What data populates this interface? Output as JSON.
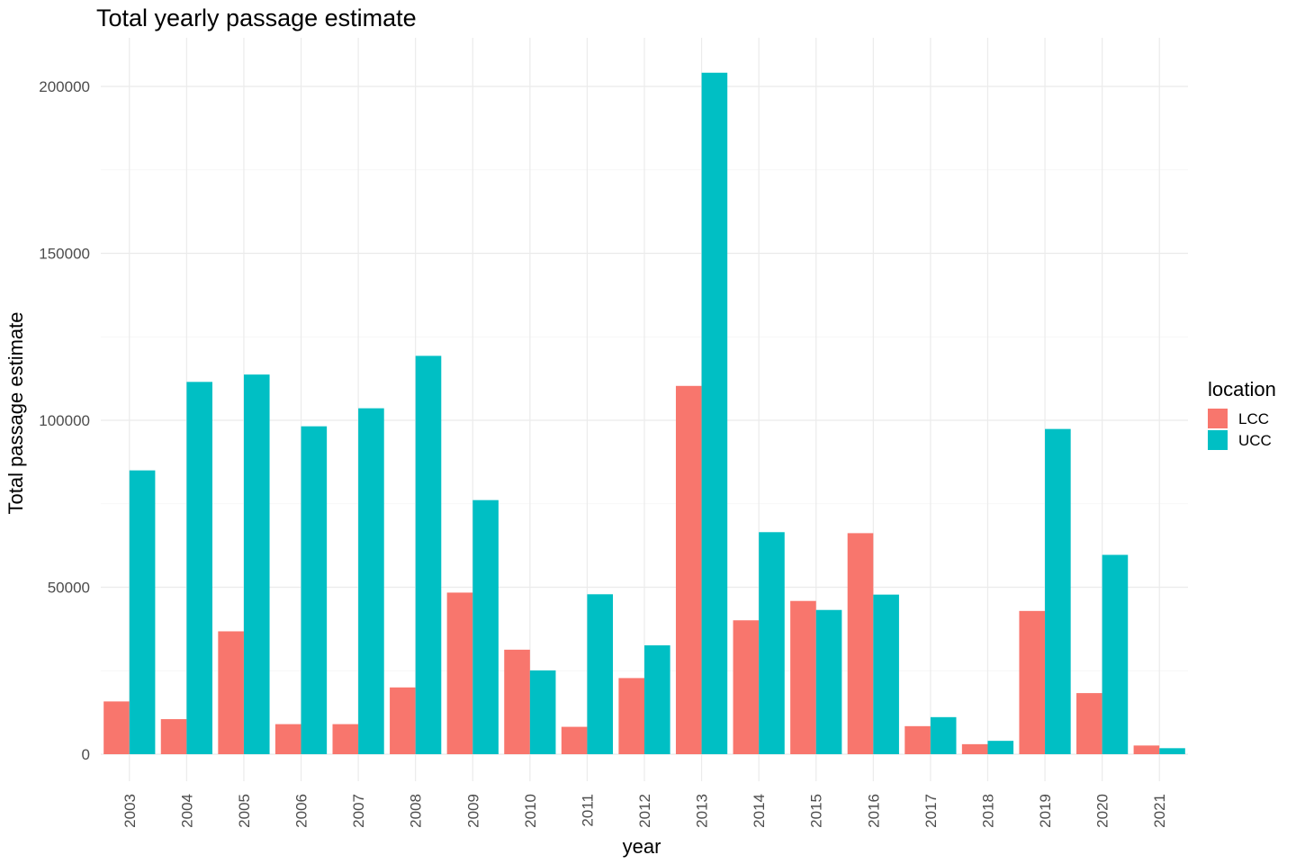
{
  "chart_data": {
    "type": "bar",
    "title": "Total yearly passage estimate",
    "xlabel": "year",
    "ylabel": "Total passage estimate",
    "categories": [
      "2003",
      "2004",
      "2005",
      "2006",
      "2007",
      "2008",
      "2009",
      "2010",
      "2011",
      "2012",
      "2013",
      "2014",
      "2015",
      "2016",
      "2017",
      "2018",
      "2019",
      "2020",
      "2021"
    ],
    "series": [
      {
        "name": "LCC",
        "color": "#F8766D",
        "values": [
          15800,
          10500,
          36800,
          9000,
          9000,
          20000,
          48400,
          31300,
          8200,
          22800,
          110300,
          40100,
          45900,
          66200,
          8400,
          3000,
          42900,
          18300,
          2600
        ]
      },
      {
        "name": "UCC",
        "color": "#00BFC4",
        "values": [
          85000,
          111500,
          113700,
          98200,
          103600,
          119300,
          76100,
          25100,
          47900,
          32600,
          204100,
          66500,
          43200,
          47800,
          11100,
          4000,
          97400,
          59700,
          1800
        ]
      }
    ],
    "ylim": [
      -8000,
      215000
    ],
    "y_ticks": [
      0,
      50000,
      100000,
      150000,
      200000
    ],
    "y_tick_labels": [
      "0",
      "50000",
      "100000",
      "150000",
      "200000"
    ],
    "grid": true,
    "legend": {
      "title": "location",
      "position": "right"
    }
  }
}
